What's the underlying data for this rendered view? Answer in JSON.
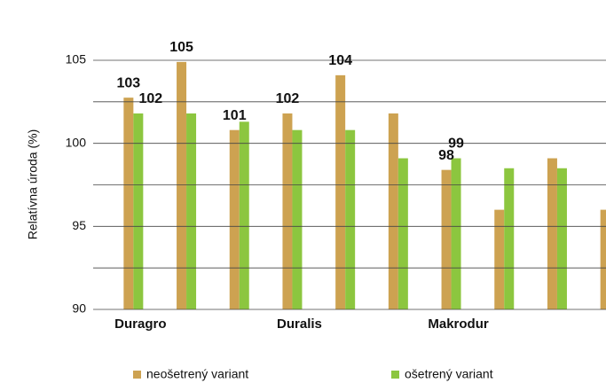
{
  "chart_data": {
    "type": "bar",
    "y_label": "Relatívna úroda (%)",
    "categories": [
      "Duragro",
      null,
      null,
      "Duralis",
      null,
      null,
      "Makrodur",
      null,
      null,
      null
    ],
    "series": [
      {
        "name": "neošetrený variant",
        "color": "#cda251",
        "values": [
          102.75,
          104.9,
          100.8,
          101.8,
          104.1,
          101.8,
          98.4,
          96,
          99.1,
          96
        ],
        "value_labels": [
          "103",
          "105",
          "101",
          "102",
          "104",
          null,
          "98",
          null,
          null,
          null
        ]
      },
      {
        "name": "ošetrený variant",
        "color": "#8cc63f",
        "values": [
          101.8,
          101.8,
          101.3,
          100.8,
          100.8,
          99.1,
          99.1,
          98.5,
          98.5,
          null
        ],
        "value_labels": [
          "102",
          null,
          null,
          null,
          null,
          null,
          "99",
          null,
          null,
          null
        ]
      }
    ],
    "ylim": [
      90,
      105
    ],
    "yticks": [
      90,
      95,
      100,
      105
    ],
    "minor_yticks": [
      92.5,
      97.5,
      102.5
    ],
    "grid": true,
    "legend": "bottom"
  }
}
